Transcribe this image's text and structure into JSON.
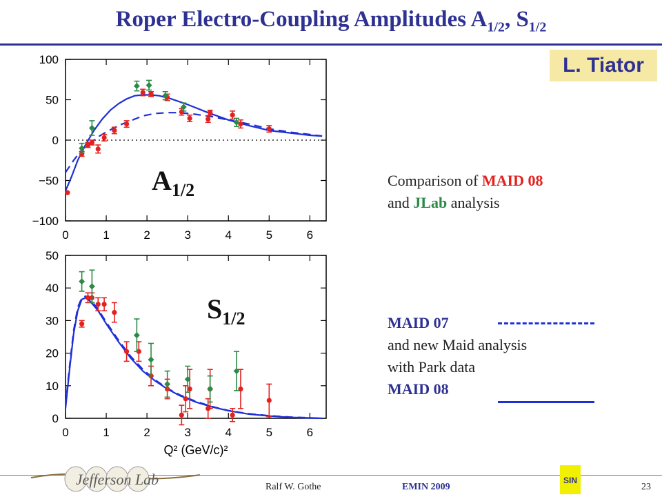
{
  "slide": {
    "title_main": "Roper Electro-Coupling Amplitudes A",
    "title_sub1": "1/2",
    "title_mid": ", S",
    "title_sub2": "1/2",
    "author": "L. Tiator",
    "comparison_prefix": "Comparison of ",
    "comparison_maid": "MAID 08",
    "comparison_and": "and ",
    "comparison_jlab": "JLab",
    "comparison_suffix": " analysis",
    "legend_maid07": "MAID 07",
    "legend_new1": "and new Maid analysis",
    "legend_new2": "with Park data",
    "legend_maid08": "MAID 08",
    "footer_name": "Ralf  W. Gothe",
    "footer_event": "EMIN 2009",
    "page_number": "23",
    "logo_text": "Jefferson Lab",
    "badge_text": "SIN"
  },
  "colors": {
    "title": "#2e3192",
    "maid": "#e3211f",
    "jlab": "#2c8a46",
    "curve": "#1f2fd6"
  },
  "chart_data": [
    {
      "type": "scatter",
      "panel_label": "A",
      "panel_sub": "1/2",
      "xlabel": "",
      "ylabel": "",
      "xlim": [
        0,
        6.4
      ],
      "ylim": [
        -100,
        100
      ],
      "xticks": [
        0,
        1,
        2,
        3,
        4,
        5,
        6
      ],
      "yticks": [
        100,
        50,
        0,
        -50,
        -100
      ],
      "ytick_labels": [
        "100",
        "50",
        "0",
        "−50",
        "−100"
      ],
      "zero_line": "dotted",
      "series": [
        {
          "color": "red",
          "marker": "circle",
          "points": [
            [
              0.05,
              -65,
              0
            ],
            [
              0.4,
              -17,
              3
            ],
            [
              0.55,
              -6,
              3
            ],
            [
              0.65,
              -3,
              3
            ],
            [
              0.8,
              -11,
              5
            ],
            [
              0.95,
              3,
              4
            ],
            [
              1.2,
              12,
              4
            ],
            [
              1.5,
              20,
              4
            ],
            [
              1.9,
              59,
              4
            ],
            [
              2.1,
              57,
              3
            ],
            [
              2.5,
              53,
              4
            ],
            [
              2.85,
              35,
              4
            ],
            [
              3.05,
              27,
              4
            ],
            [
              3.5,
              26,
              4
            ],
            [
              3.55,
              34,
              3
            ],
            [
              4.1,
              31,
              5
            ],
            [
              4.3,
              20,
              5
            ],
            [
              5.0,
              14,
              4
            ]
          ]
        },
        {
          "color": "green",
          "marker": "diamond",
          "points": [
            [
              0.4,
              -10,
              6
            ],
            [
              0.65,
              15,
              9
            ],
            [
              1.75,
              67,
              6
            ],
            [
              2.05,
              68,
              6
            ],
            [
              2.45,
              55,
              5
            ],
            [
              2.9,
              41,
              5
            ],
            [
              4.2,
              22,
              5
            ]
          ]
        },
        {
          "color": "blue",
          "style": "solid",
          "name": "MAID 08",
          "points": [
            [
              0,
              -63
            ],
            [
              0.15,
              -45
            ],
            [
              0.3,
              -25
            ],
            [
              0.5,
              -5
            ],
            [
              0.7,
              12
            ],
            [
              0.9,
              26
            ],
            [
              1.1,
              37
            ],
            [
              1.3,
              45
            ],
            [
              1.5,
              51
            ],
            [
              1.7,
              55
            ],
            [
              1.9,
              56
            ],
            [
              2.1,
              56
            ],
            [
              2.3,
              55
            ],
            [
              2.6,
              51
            ],
            [
              3.0,
              44
            ],
            [
              3.5,
              34
            ],
            [
              4.0,
              25
            ],
            [
              4.5,
              18
            ],
            [
              5.0,
              12
            ],
            [
              5.5,
              9
            ],
            [
              6.0,
              6
            ],
            [
              6.3,
              5
            ]
          ]
        },
        {
          "color": "blue",
          "style": "dashed",
          "name": "MAID 07",
          "points": [
            [
              0,
              -40
            ],
            [
              0.2,
              -25
            ],
            [
              0.4,
              -12
            ],
            [
              0.6,
              -4
            ],
            [
              0.8,
              4
            ],
            [
              1.0,
              10
            ],
            [
              1.3,
              18
            ],
            [
              1.6,
              24
            ],
            [
              1.9,
              30
            ],
            [
              2.2,
              33
            ],
            [
              2.5,
              34
            ],
            [
              2.8,
              34
            ],
            [
              3.2,
              32
            ],
            [
              3.6,
              29
            ],
            [
              4.0,
              25
            ],
            [
              4.5,
              20
            ],
            [
              5.0,
              14
            ],
            [
              5.5,
              10
            ],
            [
              6.0,
              7
            ],
            [
              6.3,
              5
            ]
          ]
        }
      ]
    },
    {
      "type": "scatter",
      "panel_label": "S",
      "panel_sub": "1/2",
      "xlabel": "Q² (GeV/c)²",
      "ylabel": "",
      "xlim": [
        0,
        6.4
      ],
      "ylim": [
        0,
        50
      ],
      "xticks": [
        0,
        1,
        2,
        3,
        4,
        5,
        6
      ],
      "yticks": [
        50,
        40,
        30,
        20,
        10,
        0
      ],
      "ytick_labels": [
        "50",
        "40",
        "30",
        "20",
        "10",
        "0"
      ],
      "series": [
        {
          "color": "red",
          "marker": "circle",
          "points": [
            [
              0.4,
              29,
              1
            ],
            [
              0.55,
              37,
              1.5
            ],
            [
              0.65,
              37,
              1.5
            ],
            [
              0.8,
              35,
              2
            ],
            [
              0.95,
              35,
              2
            ],
            [
              1.2,
              32.5,
              3
            ],
            [
              1.5,
              20.5,
              3
            ],
            [
              1.8,
              20.5,
              3
            ],
            [
              2.1,
              13,
              3
            ],
            [
              2.5,
              9,
              3
            ],
            [
              2.85,
              1,
              3
            ],
            [
              2.95,
              6,
              4
            ],
            [
              3.05,
              9,
              6
            ],
            [
              3.5,
              3,
              3
            ],
            [
              3.55,
              9,
              6
            ],
            [
              4.1,
              1,
              2
            ],
            [
              4.3,
              9,
              6
            ],
            [
              5.0,
              5.5,
              5
            ]
          ]
        },
        {
          "color": "green",
          "marker": "diamond",
          "points": [
            [
              0.4,
              42,
              3
            ],
            [
              0.65,
              40.5,
              5
            ],
            [
              1.75,
              25.5,
              5
            ],
            [
              2.1,
              18,
              5
            ],
            [
              2.5,
              10.5,
              4
            ],
            [
              3.0,
              12,
              4
            ],
            [
              3.55,
              9,
              4
            ],
            [
              4.2,
              14.5,
              6
            ]
          ]
        },
        {
          "color": "blue",
          "style": "solid",
          "name": "MAID 08",
          "points": [
            [
              0,
              3
            ],
            [
              0.1,
              15
            ],
            [
              0.2,
              26
            ],
            [
              0.3,
              33
            ],
            [
              0.4,
              36.5
            ],
            [
              0.5,
              37
            ],
            [
              0.6,
              36
            ],
            [
              0.8,
              33
            ],
            [
              1.0,
              29
            ],
            [
              1.3,
              23.5
            ],
            [
              1.6,
              18.5
            ],
            [
              1.9,
              14.5
            ],
            [
              2.2,
              11.5
            ],
            [
              2.5,
              9
            ],
            [
              2.8,
              7
            ],
            [
              3.2,
              5
            ],
            [
              3.6,
              3.5
            ],
            [
              4.0,
              2.3
            ],
            [
              4.5,
              1.3
            ],
            [
              5.0,
              0.7
            ],
            [
              5.5,
              0.3
            ],
            [
              6.0,
              0.1
            ],
            [
              6.3,
              0
            ]
          ]
        },
        {
          "color": "blue",
          "style": "dashed",
          "name": "MAID 07",
          "points": [
            [
              0,
              4
            ],
            [
              0.1,
              16
            ],
            [
              0.2,
              27
            ],
            [
              0.3,
              34
            ],
            [
              0.4,
              37
            ],
            [
              0.5,
              37.5
            ],
            [
              0.6,
              36.5
            ],
            [
              0.8,
              33.5
            ],
            [
              1.0,
              29.5
            ],
            [
              1.3,
              24
            ],
            [
              1.6,
              19
            ],
            [
              1.9,
              15
            ],
            [
              2.2,
              11.8
            ],
            [
              2.5,
              9.2
            ],
            [
              2.8,
              7.2
            ],
            [
              3.2,
              5.2
            ],
            [
              3.6,
              3.6
            ],
            [
              4.0,
              2.4
            ],
            [
              4.5,
              1.4
            ],
            [
              5.0,
              0.8
            ],
            [
              5.5,
              0.4
            ],
            [
              6.0,
              0.15
            ],
            [
              6.3,
              0
            ]
          ]
        }
      ]
    }
  ]
}
